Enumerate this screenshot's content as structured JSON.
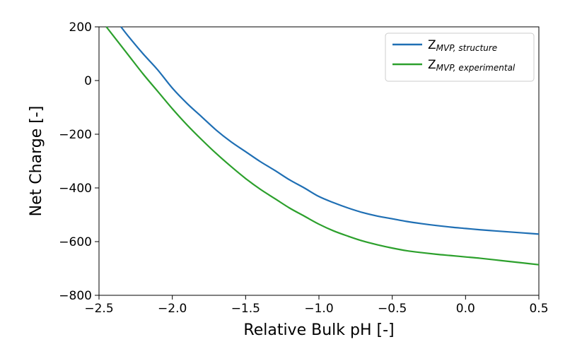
{
  "chart_data": {
    "type": "line",
    "title": "",
    "xlabel": "Relative Bulk pH [-]",
    "ylabel": "Net Charge [-]",
    "xlim": [
      -2.5,
      0.5
    ],
    "ylim": [
      -800,
      200
    ],
    "x_ticks": [
      -2.5,
      -2.0,
      -1.5,
      -1.0,
      -0.5,
      0.0,
      0.5
    ],
    "x_tick_labels": [
      "−2.5",
      "−2.0",
      "−1.5",
      "−1.0",
      "−0.5",
      "0.0",
      "0.5"
    ],
    "y_ticks": [
      200,
      0,
      -200,
      -400,
      -600,
      -800
    ],
    "y_tick_labels": [
      "200",
      "0",
      "−200",
      "−400",
      "−600",
      "−800"
    ],
    "grid": false,
    "legend_position": "top-right",
    "series": [
      {
        "name_main": "Z",
        "name_sub": "MVP, structure",
        "color": "#1f6fb4",
        "x": [
          -2.35,
          -2.3,
          -2.2,
          -2.1,
          -2.0,
          -1.9,
          -1.8,
          -1.7,
          -1.6,
          -1.5,
          -1.4,
          -1.3,
          -1.2,
          -1.1,
          -1.0,
          -0.9,
          -0.8,
          -0.7,
          -0.6,
          -0.5,
          -0.4,
          -0.3,
          -0.2,
          -0.1,
          0.0,
          0.1,
          0.2,
          0.3,
          0.4,
          0.5
        ],
        "y": [
          200,
          165,
          100,
          40,
          -28,
          -85,
          -135,
          -185,
          -228,
          -265,
          -302,
          -335,
          -370,
          -400,
          -432,
          -455,
          -475,
          -492,
          -505,
          -515,
          -525,
          -533,
          -540,
          -546,
          -551,
          -556,
          -560,
          -564,
          -568,
          -572
        ]
      },
      {
        "name_main": "Z",
        "name_sub": "MVP, experimental",
        "color": "#2ca02c",
        "x": [
          -2.45,
          -2.4,
          -2.3,
          -2.2,
          -2.1,
          -2.0,
          -1.9,
          -1.8,
          -1.7,
          -1.6,
          -1.5,
          -1.4,
          -1.3,
          -1.2,
          -1.1,
          -1.0,
          -0.9,
          -0.8,
          -0.7,
          -0.6,
          -0.5,
          -0.4,
          -0.3,
          -0.2,
          -0.1,
          0.0,
          0.1,
          0.2,
          0.3,
          0.4,
          0.5
        ],
        "y": [
          200,
          165,
          95,
          25,
          -40,
          -105,
          -165,
          -220,
          -272,
          -320,
          -365,
          -405,
          -440,
          -475,
          -505,
          -535,
          -560,
          -580,
          -598,
          -612,
          -624,
          -634,
          -641,
          -647,
          -652,
          -657,
          -662,
          -668,
          -674,
          -680,
          -686
        ]
      }
    ]
  }
}
